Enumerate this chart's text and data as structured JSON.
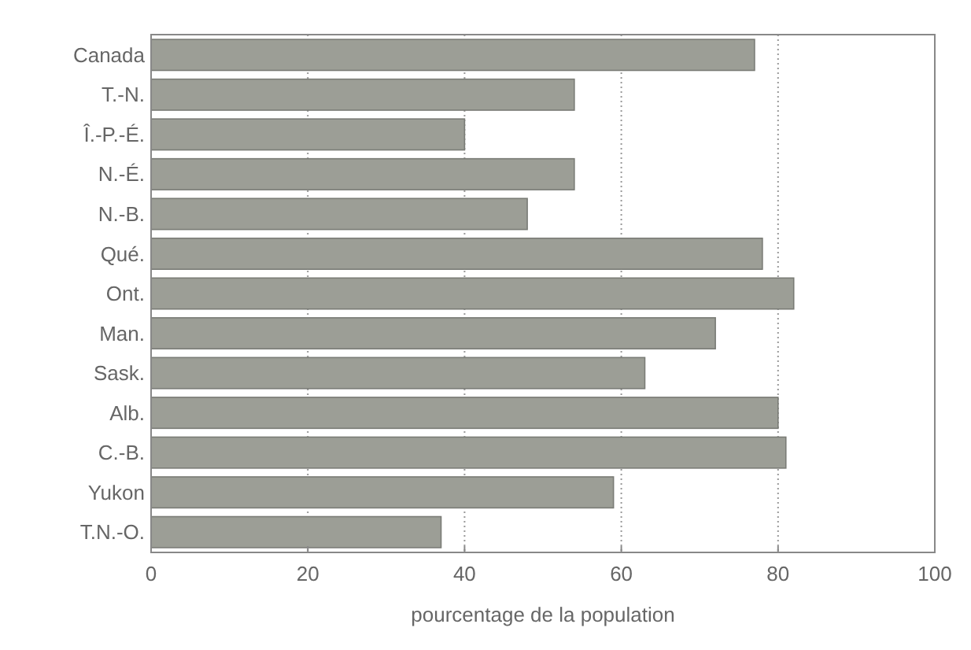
{
  "chart_data": {
    "type": "bar",
    "orientation": "horizontal",
    "xlabel": "pourcentage de la population",
    "categories": [
      "Canada",
      "T.-N.",
      "Î.-P.-É.",
      "N.-É.",
      "N.-B.",
      "Qué.",
      "Ont.",
      "Man.",
      "Sask.",
      "Alb.",
      "C.-B.",
      "Yukon",
      "T.N.-O."
    ],
    "values": [
      77,
      54,
      40,
      54,
      48,
      78,
      82,
      72,
      63,
      80,
      81,
      59,
      37
    ],
    "color": "#9c9e96",
    "xlim": [
      0,
      100
    ],
    "xticks": [
      0,
      20,
      40,
      60,
      80,
      100
    ],
    "grid": "x"
  }
}
